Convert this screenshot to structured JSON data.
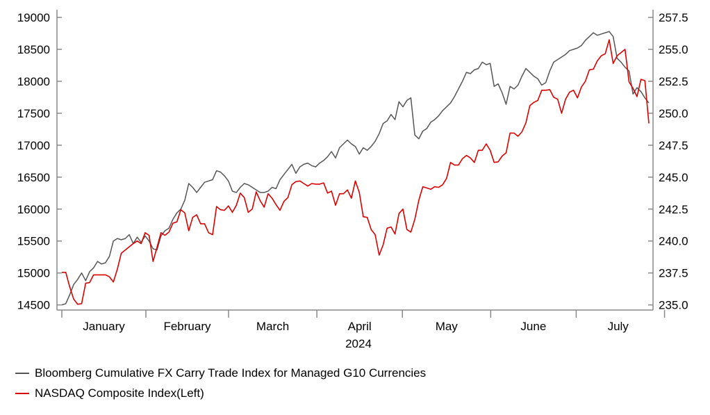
{
  "chart_data": {
    "type": "line",
    "title": "",
    "xlabel": "2024",
    "months": [
      "January",
      "February",
      "March",
      "April",
      "May",
      "June",
      "July"
    ],
    "left_axis": {
      "ticks": [
        14500,
        15000,
        15500,
        16000,
        16500,
        17000,
        17500,
        18000,
        18500,
        19000
      ],
      "tick_labels": [
        "14500",
        "15000",
        "15500",
        "16000",
        "16500",
        "17000",
        "17500",
        "18000",
        "18500",
        "19000"
      ],
      "ylim": [
        14420,
        19120
      ]
    },
    "right_axis": {
      "ticks": [
        235.0,
        237.5,
        240.0,
        242.5,
        245.0,
        247.5,
        250.0,
        252.5,
        255.0,
        257.5
      ],
      "tick_labels": [
        "235.0",
        "237.5",
        "240.0",
        "242.5",
        "245.0",
        "247.5",
        "250.0",
        "252.5",
        "255.0",
        "257.5"
      ],
      "ylim": [
        234.6,
        258.1
      ]
    },
    "legend_placement": "bottom-left",
    "grid": false,
    "series": [
      {
        "name": "Bloomberg Cumulative FX Carry Trade Index for Managed G10 Currencies",
        "axis": "right",
        "color": "#555555",
        "start_date": "2024-01-02",
        "end_date": "2024-07-26",
        "values": [
          235.0,
          235.1,
          235.8,
          236.6,
          237.0,
          237.5,
          236.9,
          237.6,
          237.9,
          238.4,
          238.2,
          238.3,
          238.8,
          240.0,
          240.2,
          240.1,
          240.2,
          240.5,
          239.8,
          240.3,
          239.9,
          240.4,
          240.0,
          239.4,
          239.3,
          240.4,
          240.8,
          241.0,
          241.7,
          242.2,
          242.5,
          243.2,
          244.5,
          244.2,
          243.8,
          244.2,
          244.6,
          244.7,
          244.8,
          245.5,
          245.4,
          245.1,
          244.7,
          243.9,
          243.8,
          244.2,
          244.5,
          244.4,
          244.2,
          244.0,
          243.8,
          243.8,
          243.9,
          244.2,
          244.1,
          244.8,
          245.2,
          245.6,
          246.0,
          245.3,
          245.8,
          246.0,
          246.1,
          245.9,
          245.8,
          246.1,
          246.3,
          246.6,
          247.0,
          246.5,
          247.3,
          247.6,
          247.9,
          247.6,
          247.4,
          246.8,
          247.3,
          247.1,
          247.4,
          247.8,
          248.4,
          249.2,
          249.4,
          249.9,
          249.5,
          250.9,
          250.5,
          251.0,
          251.2,
          248.3,
          248.0,
          248.6,
          248.8,
          249.3,
          249.5,
          249.8,
          250.2,
          250.5,
          250.8,
          251.3,
          251.9,
          252.5,
          253.2,
          253.1,
          253.4,
          253.5,
          254.0,
          253.8,
          253.9,
          252.1,
          252.3,
          251.6,
          250.7,
          252.1,
          251.9,
          252.2,
          252.9,
          253.5,
          253.2,
          252.9,
          252.7,
          252.2,
          252.4,
          253.3,
          254.0,
          254.2,
          254.4,
          254.6,
          254.9,
          255.0,
          255.1,
          255.3,
          255.7,
          256.0,
          256.3,
          256.1,
          256.2,
          256.3,
          256.4,
          256.0,
          254.3,
          254.0,
          253.6,
          253.3,
          251.5,
          252.0,
          251.7,
          251.2,
          250.8
        ]
      },
      {
        "name": "NASDAQ Composite Index(Left)",
        "axis": "left",
        "color": "#dd0000",
        "start_date": "2024-01-02",
        "end_date": "2024-07-26",
        "values": [
          15010,
          15010,
          14780,
          14590,
          14510,
          14520,
          14840,
          14850,
          14970,
          14970,
          14970,
          14970,
          14940,
          14860,
          15060,
          15310,
          15360,
          15410,
          15460,
          15500,
          15460,
          15630,
          15590,
          15180,
          15400,
          15630,
          15590,
          15640,
          15780,
          15800,
          15990,
          15940,
          15660,
          15870,
          15910,
          15770,
          15770,
          15630,
          15600,
          16040,
          15990,
          15980,
          16050,
          15950,
          16060,
          16250,
          16180,
          15950,
          16000,
          16270,
          16130,
          16030,
          16240,
          16170,
          16070,
          15980,
          16120,
          16180,
          16380,
          16430,
          16440,
          16400,
          16360,
          16400,
          16390,
          16390,
          16410,
          16250,
          16280,
          16060,
          16240,
          16240,
          16300,
          16170,
          16440,
          16260,
          15880,
          15870,
          15680,
          15600,
          15280,
          15440,
          15700,
          15720,
          15610,
          15930,
          16000,
          15680,
          15640,
          15840,
          16140,
          16350,
          16330,
          16310,
          16350,
          16340,
          16380,
          16480,
          16730,
          16690,
          16690,
          16790,
          16840,
          16800,
          16730,
          16920,
          16920,
          17020,
          16920,
          16730,
          16740,
          16830,
          16880,
          17190,
          17190,
          17140,
          17210,
          17350,
          17620,
          17670,
          17700,
          17860,
          17860,
          17870,
          17750,
          17720,
          17500,
          17720,
          17830,
          17860,
          17740,
          17910,
          18000,
          18180,
          18190,
          18320,
          18400,
          18430,
          18650,
          18280,
          18400,
          18450,
          18500,
          17990,
          17890,
          17760,
          18030,
          18010,
          17340
        ]
      }
    ]
  }
}
